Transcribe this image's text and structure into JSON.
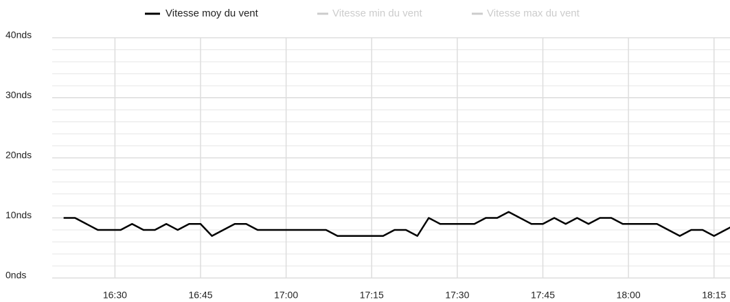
{
  "chart_data": {
    "type": "line",
    "series": [
      {
        "name": "Vitesse moy du vent",
        "color": "#000000",
        "values": [
          10,
          10,
          9,
          8,
          8,
          8,
          9,
          8,
          8,
          9,
          8,
          9,
          9,
          7,
          8,
          9,
          9,
          8,
          8,
          8,
          8,
          8,
          8,
          8,
          7,
          7,
          7,
          7,
          7,
          8,
          8,
          7,
          10,
          9,
          9,
          9,
          9,
          10,
          10,
          11,
          10,
          9,
          9,
          10,
          9,
          10,
          9,
          10,
          10,
          9,
          9,
          9,
          9,
          8,
          7,
          8,
          8,
          7,
          8,
          9
        ]
      },
      {
        "name": "Vitesse min du vent",
        "color": "#cccccc",
        "hidden": true
      },
      {
        "name": "Vitesse max du vent",
        "color": "#cccccc",
        "hidden": true
      }
    ],
    "x": [
      981,
      983,
      985,
      987,
      989,
      991,
      993,
      995,
      997,
      999,
      1001,
      1003,
      1005,
      1007,
      1009,
      1011,
      1013,
      1015,
      1017,
      1019,
      1021,
      1023,
      1025,
      1027,
      1029,
      1031,
      1033,
      1035,
      1037,
      1039,
      1041,
      1043,
      1045,
      1047,
      1049,
      1051,
      1053,
      1055,
      1057,
      1059,
      1061,
      1063,
      1065,
      1067,
      1069,
      1071,
      1073,
      1075,
      1077,
      1079,
      1081,
      1083,
      1085,
      1087,
      1089,
      1091,
      1093,
      1095,
      1097,
      1099
    ],
    "xlim": [
      979,
      1097.8
    ],
    "xticks": [
      {
        "value": 990,
        "label": "16:30"
      },
      {
        "value": 1005,
        "label": "16:45"
      },
      {
        "value": 1020,
        "label": "17:00"
      },
      {
        "value": 1035,
        "label": "17:15"
      },
      {
        "value": 1050,
        "label": "17:30"
      },
      {
        "value": 1065,
        "label": "17:45"
      },
      {
        "value": 1080,
        "label": "18:00"
      },
      {
        "value": 1095,
        "label": "18:15"
      }
    ],
    "ylim": [
      0,
      40
    ],
    "yticks": [
      {
        "value": 0,
        "label": "0nds"
      },
      {
        "value": 10,
        "label": "10nds"
      },
      {
        "value": 20,
        "label": "20nds"
      },
      {
        "value": 30,
        "label": "30nds"
      },
      {
        "value": 40,
        "label": "40nds"
      }
    ],
    "yminor": [
      2,
      4,
      6,
      8,
      12,
      14,
      16,
      18,
      22,
      24,
      26,
      28,
      32,
      34,
      36,
      38
    ],
    "grid": true,
    "legend": "top"
  }
}
